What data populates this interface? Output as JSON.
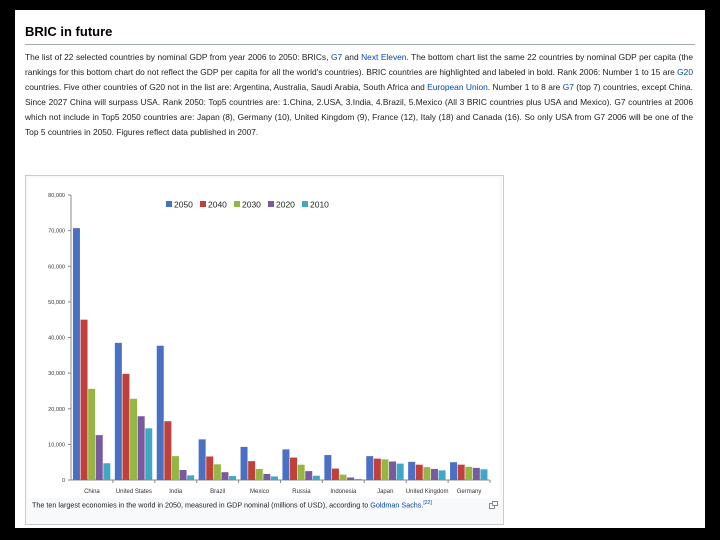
{
  "section": {
    "heading": "BRIC in future",
    "paragraph": [
      {
        "text": "The list of 22 selected countries by nominal GDP from year 2006 to 2050: BRICs, "
      },
      {
        "text": "G7",
        "link": true
      },
      {
        "text": " and "
      },
      {
        "text": "Next Eleven",
        "link": true
      },
      {
        "text": ". The bottom chart list the same 22 countries by nominal GDP per capita (the rankings for this bottom chart do not reflect the GDP per capita for all the world's countries). BRIC countries are highlighted and labeled in bold. Rank 2006: Number 1 to 15 are "
      },
      {
        "text": "G20",
        "link": true
      },
      {
        "text": " countries. Five other countries of G20 not in the list are: Argentina, Australia, Saudi Arabia, South Africa and "
      },
      {
        "text": "European Union",
        "link": true
      },
      {
        "text": ". Number 1 to 8 are "
      },
      {
        "text": "G7",
        "link": true
      },
      {
        "text": " (top 7) countries, except China. Since 2027 China will surpass USA. Rank 2050: Top5 countries are: 1.China, 2.USA, 3.India, 4.Brazil, 5.Mexico (All 3 BRIC countries plus USA and Mexico). G7 countries at 2006 which not include in Top5 2050 countries are: Japan (8), Germany (10), United Kingdom (9), France (12), Italy (18) and Canada (16). So only USA from G7 2006 will be one of the Top 5 countries in 2050. Figures reflect data published in 2007."
      }
    ]
  },
  "figure": {
    "caption_text": "The ten largest economies in the world in 2050, measured in GDP nominal (millions of USD), according to ",
    "caption_link": "Goldman Sachs",
    "caption_period": ".",
    "caption_ref": "[22]",
    "magnify_icon": "magnify-clip-icon"
  },
  "chart_data": {
    "type": "bar",
    "title": "",
    "xlabel": "",
    "ylabel": "",
    "ylim": [
      0,
      80000
    ],
    "yticks": [
      0,
      10000,
      20000,
      30000,
      40000,
      50000,
      60000,
      70000,
      80000
    ],
    "ytick_labels": [
      "0",
      "10,000",
      "20,000",
      "30,000",
      "40,000",
      "50,000",
      "60,000",
      "70,000",
      "80,000"
    ],
    "grid": false,
    "legend_position": "top-center",
    "categories": [
      "China",
      "United States",
      "India",
      "Brazil",
      "Mexico",
      "Russia",
      "Indonesia",
      "Japan",
      "United Kingdom",
      "Germany"
    ],
    "series": [
      {
        "name": "2050",
        "color": "#4a70c3",
        "values": [
          70700,
          38500,
          37700,
          11400,
          9300,
          8600,
          7000,
          6700,
          5100,
          5000
        ]
      },
      {
        "name": "2040",
        "color": "#c0413b",
        "values": [
          45000,
          29800,
          16500,
          6600,
          5300,
          6300,
          3200,
          6000,
          4300,
          4300
        ]
      },
      {
        "name": "2030",
        "color": "#95b642",
        "values": [
          25600,
          22800,
          6700,
          4400,
          3100,
          4300,
          1500,
          5800,
          3600,
          3700
        ]
      },
      {
        "name": "2020",
        "color": "#7a5a9e",
        "values": [
          12600,
          17900,
          2800,
          2200,
          1700,
          2500,
          700,
          5200,
          3100,
          3400
        ]
      },
      {
        "name": "2010",
        "color": "#40a7c4",
        "values": [
          4700,
          14500,
          1300,
          1100,
          1000,
          1200,
          300,
          4600,
          2700,
          3000
        ]
      }
    ]
  }
}
